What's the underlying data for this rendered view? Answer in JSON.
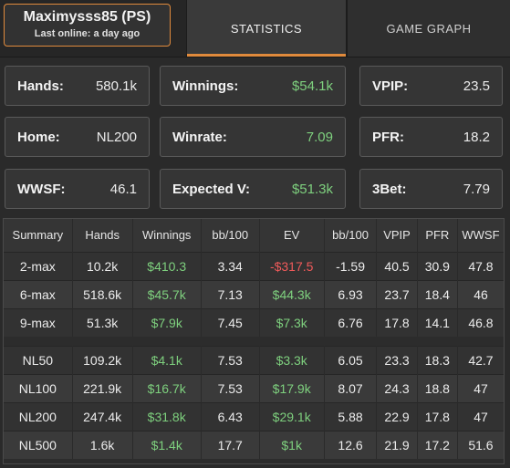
{
  "header": {
    "player_name": "Maximysss85 (PS)",
    "last_online": "Last online: a day ago",
    "tabs": [
      {
        "label": "STATISTICS",
        "active": true
      },
      {
        "label": "GAME GRAPH",
        "active": false
      }
    ],
    "accent_color": "#e08a3c"
  },
  "cards": {
    "hands": {
      "label": "Hands:",
      "value": "580.1k"
    },
    "winnings": {
      "label": "Winnings:",
      "value": "$54.1k"
    },
    "vpip": {
      "label": "VPIP:",
      "value": "23.5"
    },
    "home": {
      "label": "Home:",
      "value": "NL200"
    },
    "winrate": {
      "label": "Winrate:",
      "value": "7.09"
    },
    "pfr": {
      "label": "PFR:",
      "value": "18.2"
    },
    "wwsf": {
      "label": "WWSF:",
      "value": "46.1"
    },
    "expected": {
      "label": "Expected V:",
      "value": "$51.3k"
    },
    "threebet": {
      "label": "3Bet:",
      "value": "7.79"
    }
  },
  "table": {
    "columns": [
      "Summary",
      "Hands",
      "Winnings",
      "bb/100",
      "EV",
      "bb/100",
      "VPIP",
      "PFR",
      "WWSF"
    ],
    "rows": [
      [
        "2-max",
        "10.2k",
        "$410.3",
        "3.34",
        "-$317.5",
        "-1.59",
        "40.5",
        "30.9",
        "47.8"
      ],
      [
        "6-max",
        "518.6k",
        "$45.7k",
        "7.13",
        "$44.3k",
        "6.93",
        "23.7",
        "18.4",
        "46"
      ],
      [
        "9-max",
        "51.3k",
        "$7.9k",
        "7.45",
        "$7.3k",
        "6.76",
        "17.8",
        "14.1",
        "46.8"
      ],
      [
        "NL50",
        "109.2k",
        "$4.1k",
        "7.53",
        "$3.3k",
        "6.05",
        "23.3",
        "18.3",
        "42.7"
      ],
      [
        "NL100",
        "221.9k",
        "$16.7k",
        "7.53",
        "$17.9k",
        "8.07",
        "24.3",
        "18.8",
        "47"
      ],
      [
        "NL200",
        "247.4k",
        "$31.8k",
        "6.43",
        "$29.1k",
        "5.88",
        "22.9",
        "17.8",
        "47"
      ],
      [
        "NL500",
        "1.6k",
        "$1.4k",
        "17.7",
        "$1k",
        "12.6",
        "21.9",
        "17.2",
        "51.6"
      ]
    ],
    "positive_color": "#7ed07e",
    "negative_color": "#f05a5a"
  }
}
